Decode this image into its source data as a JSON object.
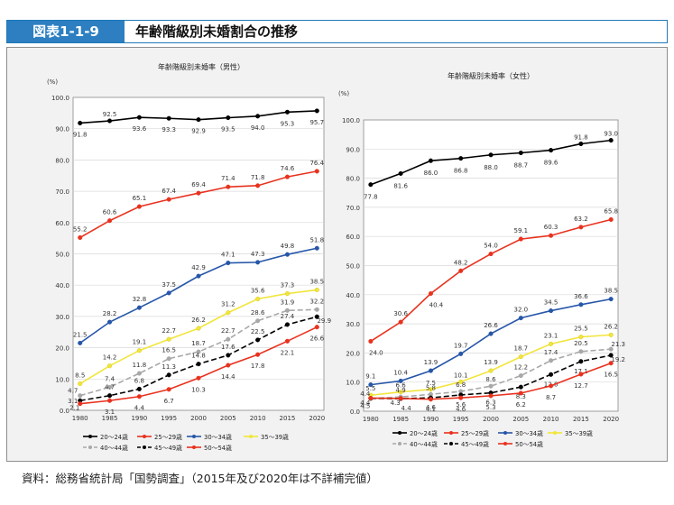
{
  "header": {
    "figure_label": "図表1-1-9",
    "title": "年齢階級別未婚割合の推移"
  },
  "source": "資料：総務省統計局「国勢調査」（2015年及び2020年は不詳補完値）",
  "chart_data": [
    {
      "type": "line",
      "title": "年齢階級別未婚率（男性）",
      "ylabel": "(%)",
      "ylim": [
        0,
        100
      ],
      "yticks": [
        "0.0",
        "10.0",
        "20.0",
        "30.0",
        "40.0",
        "50.0",
        "60.0",
        "70.0",
        "80.0",
        "90.0",
        "100.0"
      ],
      "categories": [
        "1980",
        "1985",
        "1990",
        "1995",
        "2000",
        "2005",
        "2010",
        "2015",
        "2020"
      ],
      "legend_position": "bottom",
      "series": [
        {
          "name": "20～24歳",
          "color": "#000000",
          "dash": "",
          "values": [
            91.8,
            92.5,
            93.6,
            93.3,
            92.9,
            93.5,
            94.0,
            95.3,
            95.7
          ]
        },
        {
          "name": "25～29歳",
          "color": "#e8321e",
          "dash": "",
          "values": [
            55.2,
            60.6,
            65.1,
            67.4,
            69.4,
            71.4,
            71.8,
            74.6,
            76.4
          ]
        },
        {
          "name": "30～34歳",
          "color": "#2656a8",
          "dash": "",
          "values": [
            21.5,
            28.2,
            32.8,
            37.5,
            42.9,
            47.1,
            47.3,
            49.8,
            51.8
          ]
        },
        {
          "name": "35～39歳",
          "color": "#f2e53c",
          "dash": "",
          "values": [
            8.5,
            14.2,
            19.1,
            22.7,
            26.2,
            31.2,
            35.6,
            37.3,
            38.5
          ]
        },
        {
          "name": "40～44歳",
          "color": "#a8a8a8",
          "dash": "6,3",
          "values": [
            4.7,
            7.4,
            11.8,
            16.5,
            18.7,
            22.7,
            28.6,
            31.9,
            32.2
          ]
        },
        {
          "name": "45～49歳",
          "color": "#000000",
          "dash": "6,3",
          "values": [
            3.1,
            4.7,
            6.8,
            11.3,
            14.8,
            17.6,
            22.5,
            27.4,
            29.9
          ]
        },
        {
          "name": "50～54歳",
          "color": "#e8321e",
          "dash": "",
          "values": [
            2.1,
            3.1,
            4.4,
            6.7,
            10.3,
            14.4,
            17.8,
            22.1,
            26.6
          ]
        }
      ]
    },
    {
      "type": "line",
      "title": "年齢階級別未婚率（女性）",
      "ylabel": "(%)",
      "ylim": [
        0,
        100
      ],
      "yticks": [
        "0.0",
        "10.0",
        "20.0",
        "30.0",
        "40.0",
        "50.0",
        "60.0",
        "70.0",
        "80.0",
        "90.0",
        "100.0"
      ],
      "categories": [
        "1980",
        "1985",
        "1990",
        "1995",
        "2000",
        "2005",
        "2010",
        "2015",
        "2020"
      ],
      "legend_position": "bottom",
      "series": [
        {
          "name": "20～24歳",
          "color": "#000000",
          "dash": "",
          "values": [
            77.8,
            81.6,
            86.0,
            86.8,
            88.0,
            88.7,
            89.6,
            91.8,
            93.0
          ]
        },
        {
          "name": "25～29歳",
          "color": "#e8321e",
          "dash": "",
          "values": [
            24.0,
            30.6,
            40.4,
            48.2,
            54.0,
            59.1,
            60.3,
            63.2,
            65.8
          ]
        },
        {
          "name": "30～34歳",
          "color": "#2656a8",
          "dash": "",
          "values": [
            9.1,
            10.4,
            13.9,
            19.7,
            26.6,
            32.0,
            34.5,
            36.6,
            38.5
          ]
        },
        {
          "name": "35～39歳",
          "color": "#f2e53c",
          "dash": "",
          "values": [
            5.5,
            6.6,
            7.5,
            10.1,
            13.9,
            18.7,
            23.1,
            25.5,
            26.2
          ]
        },
        {
          "name": "40～44歳",
          "color": "#a8a8a8",
          "dash": "6,3",
          "values": [
            4.4,
            4.9,
            5.8,
            6.8,
            8.6,
            12.2,
            17.4,
            20.5,
            21.3
          ]
        },
        {
          "name": "45～49歳",
          "color": "#000000",
          "dash": "6,3",
          "values": [
            4.4,
            4.3,
            4.6,
            5.6,
            6.3,
            8.3,
            12.6,
            17.1,
            19.2
          ]
        },
        {
          "name": "50～54歳",
          "color": "#e8321e",
          "dash": "",
          "values": [
            4.5,
            4.4,
            4.1,
            4.6,
            5.3,
            6.2,
            8.7,
            12.7,
            16.5
          ]
        }
      ]
    }
  ]
}
